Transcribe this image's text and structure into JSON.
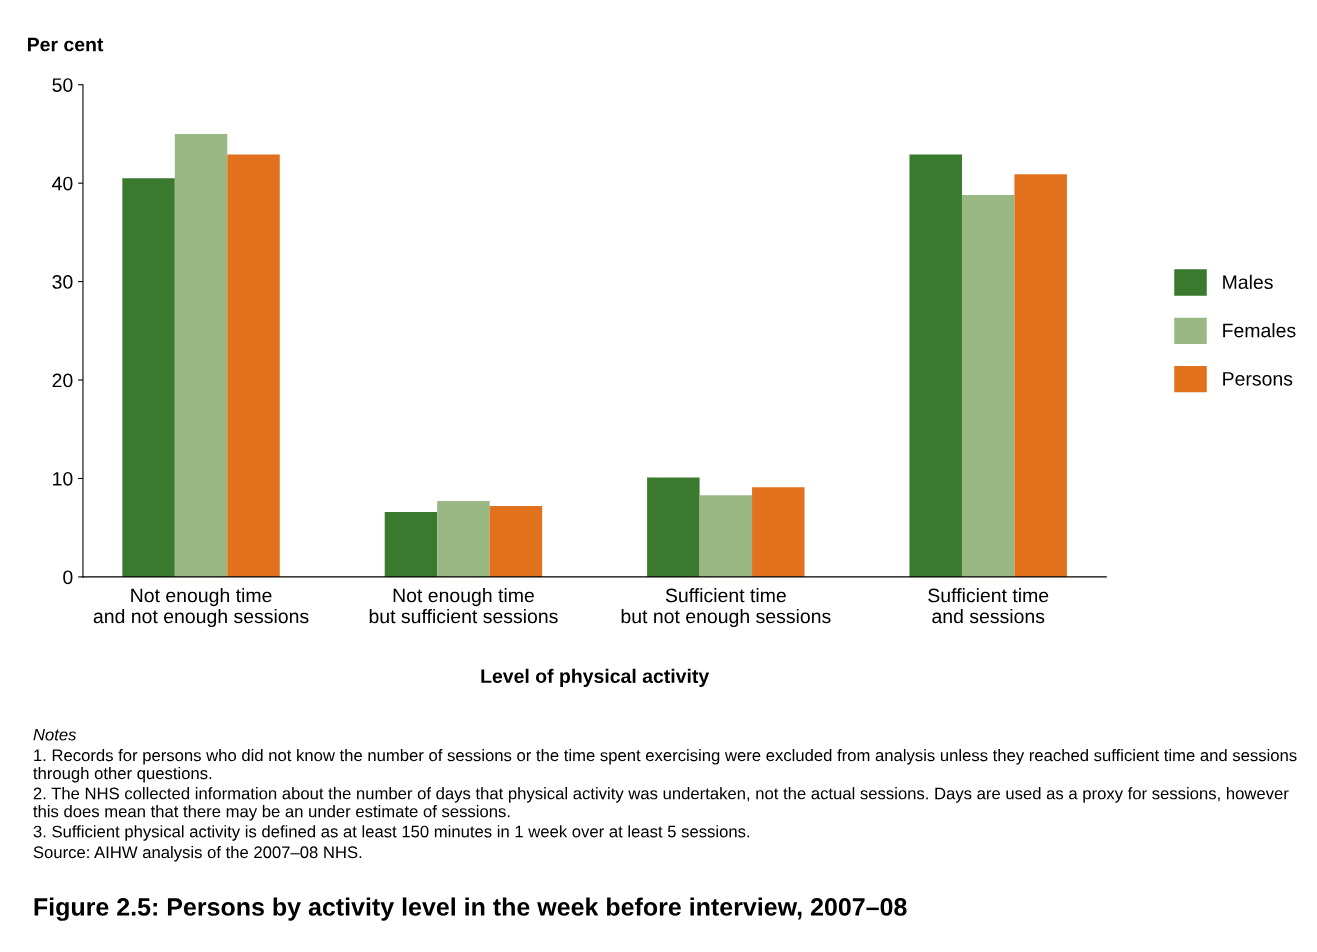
{
  "chart_data": {
    "type": "bar",
    "title": "Figure 2.5: Persons by activity level in the week before interview, 2007–08",
    "ylabel": "Per cent",
    "xlabel": "Level of physical activity",
    "categories": [
      "Not enough time\nand not enough sessions",
      "Not enough time\nbut sufficient sessions",
      "Sufficient time\nbut not enough sessions",
      "Sufficient time\nand sessions"
    ],
    "series": [
      {
        "name": "Males",
        "color": "#3a7a2e",
        "values": [
          40.5,
          6.6,
          10.1,
          42.9
        ]
      },
      {
        "name": "Females",
        "color": "#9ab883",
        "values": [
          45.0,
          7.7,
          8.3,
          38.8
        ]
      },
      {
        "name": "Persons",
        "color": "#e2711d",
        "values": [
          42.9,
          7.2,
          9.1,
          40.9
        ]
      }
    ],
    "ylim": [
      0,
      50
    ],
    "yticks": [
      0,
      10,
      20,
      30,
      40,
      50
    ],
    "grid": false,
    "legend": "right",
    "annotations": [
      "Notes",
      "1. Records for persons who did not know the number of sessions or the time spent exercising were excluded from analysis unless they reached sufficient time and sessions through other questions.",
      "2. The NHS collected information about the number of days that physical activity was undertaken, not the actual sessions. Days are used as a proxy for sessions, however this does mean that there may be an under estimate of sessions.",
      "3. Sufficient physical activity is defined as at least 150 minutes in 1 week over at least 5 sessions.",
      "Source: AIHW analysis of the 2007–08 NHS."
    ]
  }
}
